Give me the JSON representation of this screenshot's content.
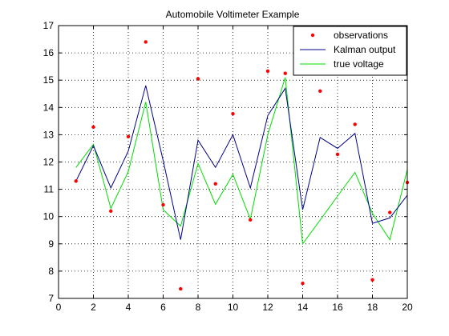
{
  "chart_data": {
    "type": "line",
    "title": "Automobile Voltimeter Example",
    "xlabel": "",
    "ylabel": "",
    "xlim": [
      0,
      20
    ],
    "ylim": [
      7,
      17
    ],
    "xticks": [
      0,
      2,
      4,
      6,
      8,
      10,
      12,
      14,
      16,
      18,
      20
    ],
    "yticks": [
      7,
      8,
      9,
      10,
      11,
      12,
      13,
      14,
      15,
      16,
      17
    ],
    "grid": true,
    "legend_position": "top-right",
    "x": [
      1,
      2,
      3,
      4,
      5,
      6,
      7,
      8,
      9,
      10,
      11,
      12,
      13,
      14,
      15,
      16,
      17,
      18,
      19,
      20
    ],
    "series": [
      {
        "name": "observations",
        "style": "markers",
        "color": "#ff0000",
        "values": [
          11.3,
          13.28,
          10.2,
          12.93,
          16.4,
          10.43,
          7.35,
          15.05,
          11.2,
          13.77,
          9.88,
          15.33,
          15.25,
          7.55,
          14.6,
          12.28,
          13.38,
          7.68,
          10.15,
          11.25
        ]
      },
      {
        "name": "Kalman output",
        "style": "line",
        "color": "#00008b",
        "values": [
          11.3,
          12.6,
          11.05,
          12.4,
          14.8,
          12.05,
          9.15,
          12.8,
          11.8,
          13.0,
          11.05,
          13.7,
          14.7,
          10.25,
          12.9,
          12.5,
          13.05,
          9.75,
          9.95,
          10.78
        ]
      },
      {
        "name": "true voltage",
        "style": "line",
        "color": "#00dd00",
        "values": [
          11.8,
          12.65,
          10.3,
          11.65,
          14.2,
          10.25,
          9.65,
          11.95,
          10.45,
          11.55,
          9.9,
          13.0,
          15.1,
          9.0,
          9.87,
          10.75,
          11.62,
          10.12,
          9.15,
          11.72
        ]
      }
    ]
  }
}
